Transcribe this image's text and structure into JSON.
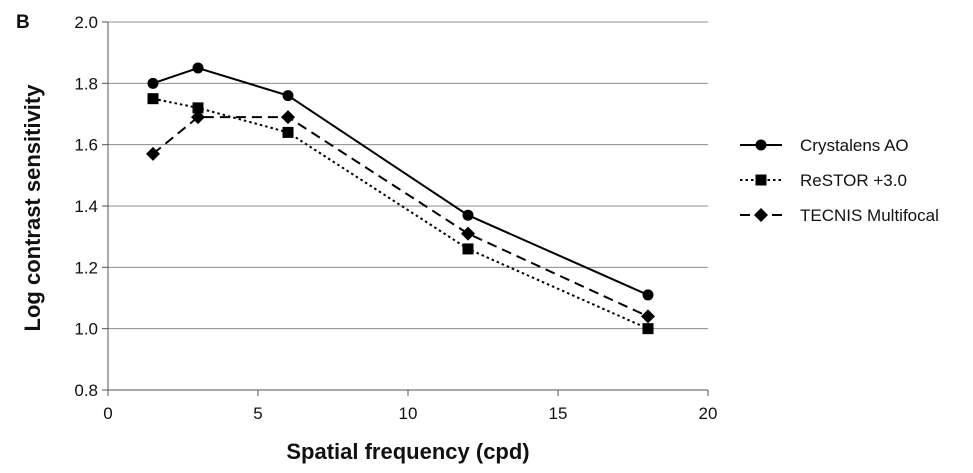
{
  "panel_label": "B",
  "chart_data": {
    "type": "line",
    "xlabel": "Spatial frequency (cpd)",
    "ylabel": "Log contrast sensitivity",
    "xlim": [
      0,
      20
    ],
    "ylim": [
      0.8,
      2.0
    ],
    "xticks": [
      "0",
      "5",
      "10",
      "15",
      "20"
    ],
    "yticks": [
      "0.8",
      "1.0",
      "1.2",
      "1.4",
      "1.6",
      "1.8",
      "2.0"
    ],
    "grid": "horizontal",
    "legend_position": "right",
    "series": [
      {
        "name": "Crystalens AO",
        "marker": "circle",
        "line_style": "solid",
        "color": "#000000",
        "x": [
          1.5,
          3,
          6,
          12,
          18
        ],
        "values": [
          1.8,
          1.85,
          1.76,
          1.37,
          1.11
        ]
      },
      {
        "name": "ReSTOR +3.0",
        "marker": "square",
        "line_style": "dotted",
        "color": "#000000",
        "x": [
          1.5,
          3,
          6,
          12,
          18
        ],
        "values": [
          1.75,
          1.72,
          1.64,
          1.26,
          1.0
        ]
      },
      {
        "name": "TECNIS Multifocal",
        "marker": "diamond",
        "line_style": "dashed",
        "color": "#000000",
        "x": [
          1.5,
          3,
          6,
          12,
          18
        ],
        "values": [
          1.57,
          1.69,
          1.69,
          1.31,
          1.04
        ]
      }
    ]
  }
}
